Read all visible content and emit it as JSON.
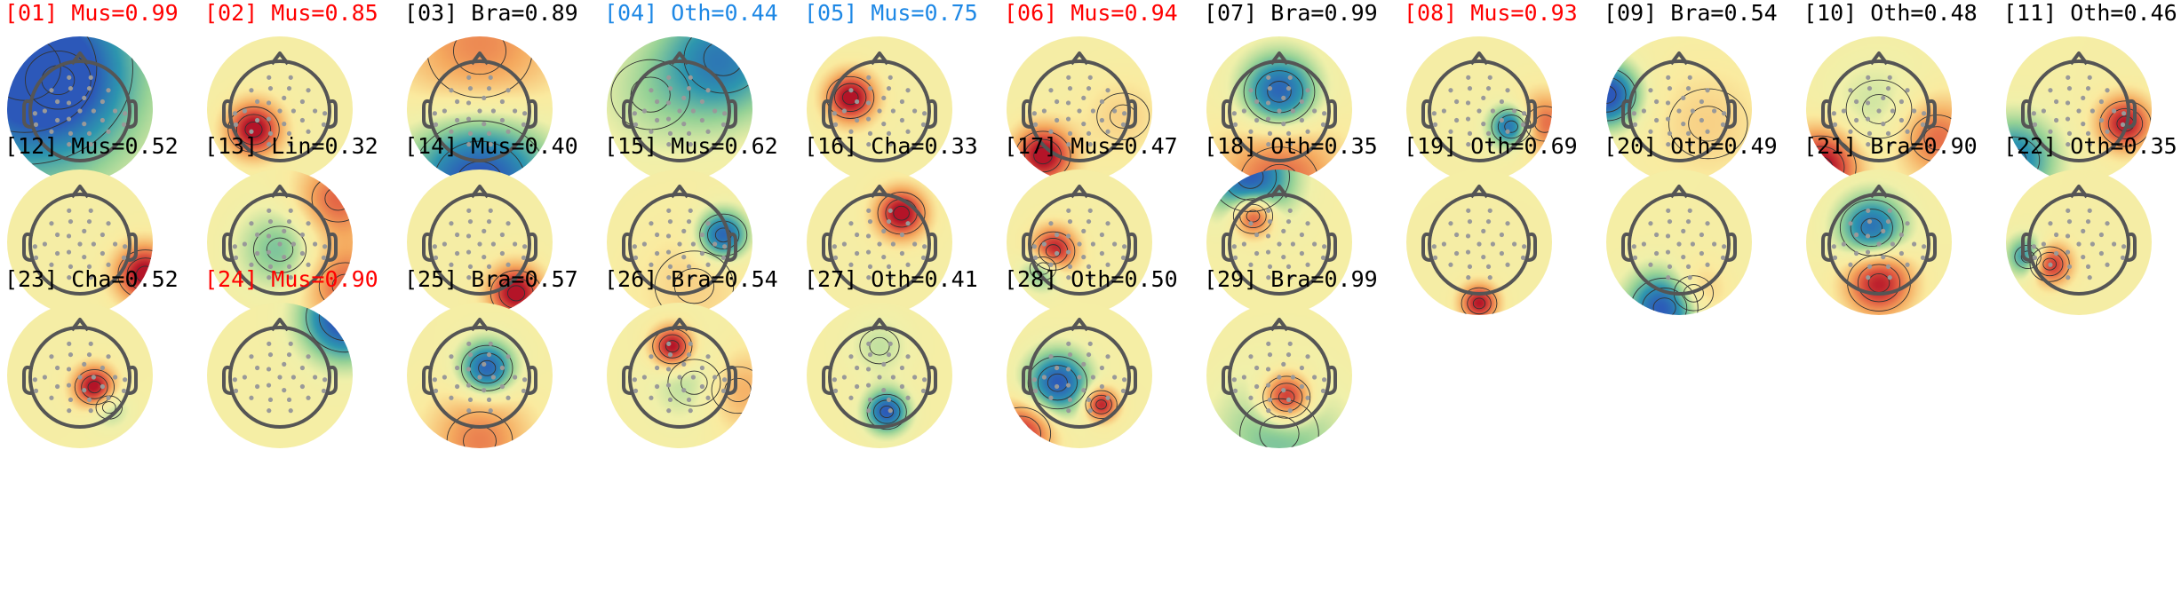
{
  "figure": {
    "colors": {
      "flagged_red": "#ff0000",
      "flagged_blue": "#1e88e5",
      "normal": "#000000",
      "head_outline": "#555555",
      "electrode": "#999999",
      "contour": "#333333"
    },
    "components": [
      {
        "index": "[01]",
        "label": "Mus=0.99",
        "highlight": "red",
        "map": {
          "base": 0.4,
          "blobs": [
            [
              0.12,
              0.22,
              0.55,
              1.0
            ],
            [
              0.35,
              0.3,
              0.25,
              0.4
            ]
          ]
        }
      },
      {
        "index": "[02]",
        "label": "Mus=0.85",
        "highlight": "red",
        "map": {
          "base": 0.45,
          "blobs": [
            [
              0.32,
              0.64,
              0.13,
              -1.0
            ]
          ]
        }
      },
      {
        "index": "[03]",
        "label": "Bra=0.89",
        "highlight": "none",
        "map": {
          "base": 0.35,
          "blobs": [
            [
              0.5,
              1.0,
              0.35,
              1.0
            ],
            [
              0.5,
              0.1,
              0.4,
              -0.5
            ]
          ]
        }
      },
      {
        "index": "[04]",
        "label": "Oth=0.44",
        "highlight": "blue",
        "map": {
          "base": 0.45,
          "blobs": [
            [
              0.8,
              0.15,
              0.3,
              0.7
            ],
            [
              0.3,
              0.4,
              0.3,
              0.2
            ]
          ]
        }
      },
      {
        "index": "[05]",
        "label": "Mus=0.75",
        "highlight": "blue",
        "map": {
          "base": 0.45,
          "blobs": [
            [
              0.3,
              0.42,
              0.12,
              -1.0
            ]
          ]
        }
      },
      {
        "index": "[06]",
        "label": "Mus=0.94",
        "highlight": "red",
        "map": {
          "base": 0.45,
          "blobs": [
            [
              0.25,
              0.82,
              0.14,
              -1.0
            ],
            [
              0.8,
              0.55,
              0.2,
              -0.2
            ]
          ]
        }
      },
      {
        "index": "[07]",
        "label": "Bra=0.99",
        "highlight": "none",
        "map": {
          "base": 0.3,
          "blobs": [
            [
              0.5,
              0.38,
              0.18,
              0.9
            ],
            [
              0.5,
              1.0,
              0.3,
              -0.6
            ]
          ]
        }
      },
      {
        "index": "[08]",
        "label": "Mus=0.93",
        "highlight": "red",
        "map": {
          "base": 0.45,
          "blobs": [
            [
              0.72,
              0.62,
              0.1,
              0.9
            ],
            [
              0.95,
              0.6,
              0.15,
              -0.6
            ]
          ]
        }
      },
      {
        "index": "[09]",
        "label": "Bra=0.54",
        "highlight": "none",
        "map": {
          "base": 0.4,
          "blobs": [
            [
              0.0,
              0.4,
              0.15,
              1.0
            ],
            [
              0.7,
              0.6,
              0.3,
              -0.2
            ]
          ]
        }
      },
      {
        "index": "[10]",
        "label": "Oth=0.48",
        "highlight": "none",
        "map": {
          "base": 0.4,
          "blobs": [
            [
              0.1,
              0.9,
              0.18,
              -1.0
            ],
            [
              0.9,
              0.7,
              0.2,
              -0.6
            ],
            [
              0.5,
              0.5,
              0.25,
              0.2
            ]
          ]
        }
      },
      {
        "index": "[11]",
        "label": "Oth=0.46",
        "highlight": "none",
        "map": {
          "base": 0.45,
          "blobs": [
            [
              0.82,
              0.6,
              0.13,
              -0.9
            ],
            [
              0.05,
              0.85,
              0.2,
              0.7
            ]
          ]
        }
      },
      {
        "index": "[12]",
        "label": "Mus=0.52",
        "highlight": "none",
        "map": {
          "base": 0.45,
          "blobs": [
            [
              0.95,
              0.72,
              0.14,
              -1.0
            ]
          ]
        }
      },
      {
        "index": "[13]",
        "label": "Lin=0.32",
        "highlight": "none",
        "map": {
          "base": 0.4,
          "blobs": [
            [
              0.5,
              0.55,
              0.2,
              0.4
            ],
            [
              0.9,
              0.2,
              0.2,
              -0.6
            ],
            [
              0.95,
              0.8,
              0.2,
              -0.6
            ]
          ]
        }
      },
      {
        "index": "[14]",
        "label": "Mus=0.40",
        "highlight": "none",
        "map": {
          "base": 0.45,
          "blobs": [
            [
              0.75,
              0.85,
              0.13,
              -1.0
            ]
          ]
        }
      },
      {
        "index": "[15]",
        "label": "Mus=0.62",
        "highlight": "none",
        "map": {
          "base": 0.45,
          "blobs": [
            [
              0.8,
              0.45,
              0.12,
              0.9
            ],
            [
              0.6,
              0.8,
              0.3,
              -0.2
            ]
          ]
        }
      },
      {
        "index": "[16]",
        "label": "Cha=0.33",
        "highlight": "none",
        "map": {
          "base": 0.45,
          "blobs": [
            [
              0.65,
              0.3,
              0.12,
              -1.0
            ]
          ]
        }
      },
      {
        "index": "[17]",
        "label": "Mus=0.47",
        "highlight": "none",
        "map": {
          "base": 0.45,
          "blobs": [
            [
              0.32,
              0.56,
              0.11,
              -1.0
            ],
            [
              0.25,
              0.68,
              0.1,
              0.6
            ]
          ]
        }
      },
      {
        "index": "[18]",
        "label": "Oth=0.35",
        "highlight": "none",
        "map": {
          "base": 0.45,
          "blobs": [
            [
              0.32,
              0.32,
              0.1,
              -0.9
            ],
            [
              0.3,
              0.05,
              0.2,
              0.9
            ]
          ]
        }
      },
      {
        "index": "[19]",
        "label": "Oth=0.69",
        "highlight": "none",
        "map": {
          "base": 0.45,
          "blobs": [
            [
              0.5,
              0.92,
              0.09,
              -0.9
            ]
          ]
        }
      },
      {
        "index": "[20]",
        "label": "Oth=0.49",
        "highlight": "none",
        "map": {
          "base": 0.45,
          "blobs": [
            [
              0.4,
              0.95,
              0.17,
              1.0
            ],
            [
              0.6,
              0.85,
              0.15,
              -0.4
            ]
          ]
        }
      },
      {
        "index": "[21]",
        "label": "Bra=0.90",
        "highlight": "none",
        "map": {
          "base": 0.4,
          "blobs": [
            [
              0.45,
              0.4,
              0.16,
              0.8
            ],
            [
              0.5,
              0.78,
              0.16,
              -0.9
            ]
          ]
        }
      },
      {
        "index": "[22]",
        "label": "Oth=0.35",
        "highlight": "none",
        "map": {
          "base": 0.45,
          "blobs": [
            [
              0.3,
              0.65,
              0.1,
              -0.9
            ],
            [
              0.15,
              0.6,
              0.1,
              0.7
            ]
          ]
        }
      },
      {
        "index": "[23]",
        "label": "Cha=0.52",
        "highlight": "none",
        "map": {
          "base": 0.45,
          "blobs": [
            [
              0.6,
              0.58,
              0.1,
              -1.0
            ],
            [
              0.7,
              0.72,
              0.1,
              0.3
            ]
          ]
        }
      },
      {
        "index": "[24]",
        "label": "Mus=0.90",
        "highlight": "red",
        "map": {
          "base": 0.45,
          "blobs": [
            [
              0.95,
              0.1,
              0.2,
              1.0
            ]
          ]
        }
      },
      {
        "index": "[25]",
        "label": "Bra=0.57",
        "highlight": "none",
        "map": {
          "base": 0.4,
          "blobs": [
            [
              0.55,
              0.45,
              0.13,
              0.9
            ],
            [
              0.5,
              0.95,
              0.25,
              -0.5
            ]
          ]
        }
      },
      {
        "index": "[26]",
        "label": "Bra=0.54",
        "highlight": "none",
        "map": {
          "base": 0.4,
          "blobs": [
            [
              0.45,
              0.3,
              0.1,
              -1.0
            ],
            [
              0.6,
              0.55,
              0.2,
              0.3
            ],
            [
              0.9,
              0.6,
              0.2,
              -0.4
            ]
          ]
        }
      },
      {
        "index": "[27]",
        "label": "Oth=0.41",
        "highlight": "none",
        "map": {
          "base": 0.45,
          "blobs": [
            [
              0.55,
              0.75,
              0.1,
              0.9
            ],
            [
              0.5,
              0.3,
              0.15,
              0.2
            ]
          ]
        }
      },
      {
        "index": "[28]",
        "label": "Oth=0.50",
        "highlight": "none",
        "map": {
          "base": 0.4,
          "blobs": [
            [
              0.35,
              0.55,
              0.15,
              0.9
            ],
            [
              0.65,
              0.7,
              0.08,
              -0.9
            ],
            [
              0.1,
              0.9,
              0.15,
              -0.8
            ]
          ]
        }
      },
      {
        "index": "[29]",
        "label": "Bra=0.99",
        "highlight": "none",
        "map": {
          "base": 0.4,
          "blobs": [
            [
              0.55,
              0.65,
              0.12,
              -1.0
            ],
            [
              0.5,
              0.9,
              0.3,
              0.4
            ]
          ]
        }
      }
    ]
  }
}
